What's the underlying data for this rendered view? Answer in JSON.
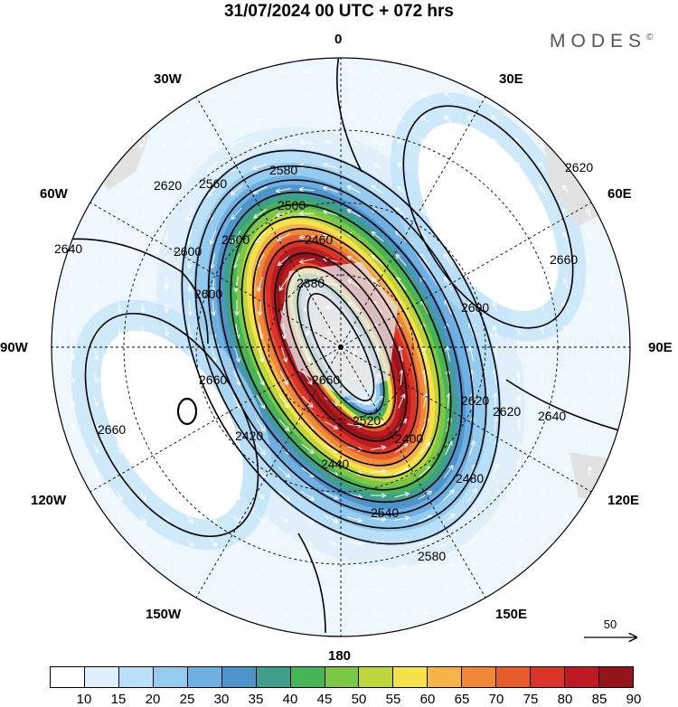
{
  "header": {
    "title": "31/07/2024  00 UTC  + 072 hrs",
    "logo_text": "MODES",
    "logo_mark": "©"
  },
  "map": {
    "projection": "polar stereographic",
    "longitude_labels": [
      "0",
      "30E",
      "60E",
      "90E",
      "120E",
      "150E",
      "180",
      "150W",
      "120W",
      "90W",
      "60W",
      "30W"
    ],
    "contour_labels": [
      "2580",
      "2560",
      "2500",
      "2460",
      "2380",
      "2500",
      "2600",
      "2600",
      "2620",
      "2640",
      "2660",
      "2660",
      "2660",
      "2640",
      "2620",
      "2600",
      "2620",
      "2520",
      "2400",
      "2440",
      "2480",
      "2540",
      "2580",
      "2620",
      "2660",
      "2420"
    ],
    "reference_vector_label": "50"
  },
  "colorbar": {
    "labels": [
      "10",
      "15",
      "20",
      "25",
      "30",
      "35",
      "40",
      "45",
      "50",
      "55",
      "60",
      "65",
      "70",
      "75",
      "80",
      "85",
      "90"
    ],
    "colors": [
      "#ffffff",
      "#dff0fc",
      "#b9e0f8",
      "#95cbee",
      "#6eb0e1",
      "#4e94cb",
      "#3f9e8c",
      "#47b555",
      "#7bc746",
      "#bed63c",
      "#f6e14a",
      "#f5b34a",
      "#ef8838",
      "#e75c2c",
      "#d93427",
      "#bd1b22",
      "#931519"
    ]
  }
}
